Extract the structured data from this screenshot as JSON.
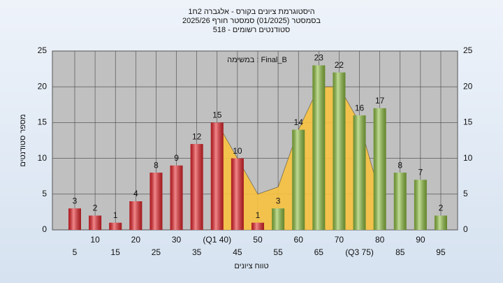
{
  "chart_data": {
    "type": "bar",
    "title": [
      "היסטוגרמת ציונים בקורס - אלגברה 2ח1",
      "בסמסטר  (01/2025)  סמסטר חורף 2025/26",
      "סטודנטים רשומים - 518"
    ],
    "annotation": "במשימה : Final_B",
    "x_label": "טווח ציונים",
    "y_label": "מספר סטודנטים",
    "categories": [
      "5",
      "10",
      "15",
      "20",
      "25",
      "30",
      "35",
      "(Q1 40)",
      "45",
      "50",
      "55",
      "60",
      "65",
      "70",
      "(Q3 75)",
      "80",
      "85",
      "90",
      "95"
    ],
    "values": [
      3,
      2,
      1,
      4,
      8,
      9,
      12,
      15,
      10,
      1,
      3,
      14,
      23,
      22,
      16,
      17,
      8,
      7,
      2
    ],
    "colors": [
      "#e8242a",
      "#e8242a",
      "#e8242a",
      "#e8242a",
      "#e8242a",
      "#e8242a",
      "#e8242a",
      "#e8242a",
      "#e8242a",
      "#e8242a",
      "#8fc040",
      "#8fc040",
      "#8fc040",
      "#8fc040",
      "#8fc040",
      "#8fc040",
      "#8fc040",
      "#8fc040",
      "#8fc040"
    ],
    "area": {
      "color": "#f7c240",
      "x": [
        40,
        45,
        50,
        55,
        60,
        65,
        70,
        75,
        80
      ],
      "values": [
        15,
        10,
        5,
        6,
        14,
        20,
        20,
        15,
        5
      ]
    },
    "ylim": [
      0,
      25
    ],
    "yticks": [
      0,
      5,
      10,
      15,
      20,
      25
    ],
    "grid": true
  }
}
